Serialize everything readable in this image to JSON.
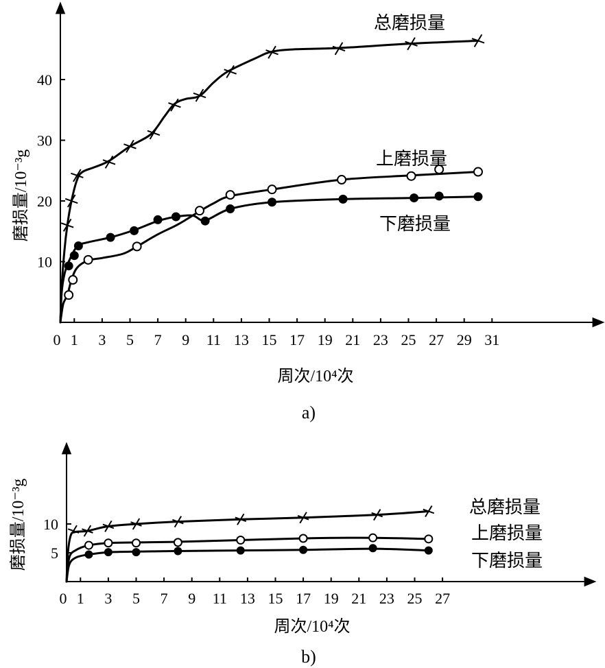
{
  "chart_data": [
    {
      "type": "line",
      "caption": "a)",
      "xlabel": "周次/10⁴次",
      "ylabel": "磨损量/10⁻³g",
      "xlim": [
        0,
        34
      ],
      "ylim": [
        0,
        50
      ],
      "x_ticks": [
        "0",
        "1",
        "3",
        "5",
        "7",
        "9",
        "11",
        "13",
        "15",
        "17",
        "19",
        "21",
        "23",
        "25",
        "27",
        "29",
        "31"
      ],
      "y_ticks": [
        "10",
        "20",
        "30",
        "40"
      ],
      "grid": false,
      "series": [
        {
          "name": "总磨损量",
          "marker": "x",
          "curve": [
            [
              0,
              0
            ],
            [
              0.1,
              6
            ],
            [
              0.3,
              12
            ],
            [
              0.5,
              16
            ],
            [
              0.8,
              20
            ],
            [
              1.2,
              23.5
            ],
            [
              1.6,
              24.8
            ],
            [
              2.5,
              25.6
            ],
            [
              3.5,
              26.6
            ],
            [
              5,
              29
            ],
            [
              6.5,
              31
            ],
            [
              7.5,
              34
            ],
            [
              8.2,
              36
            ],
            [
              9,
              36.8
            ],
            [
              10,
              37.3
            ],
            [
              11,
              39.5
            ],
            [
              12,
              41.3
            ],
            [
              14,
              43.5
            ],
            [
              15.2,
              44.6
            ],
            [
              17,
              45
            ],
            [
              20,
              45.2
            ],
            [
              25,
              45.9
            ],
            [
              30,
              46.4
            ]
          ],
          "markers": [
            [
              0.5,
              16
            ],
            [
              0.8,
              20
            ],
            [
              1.2,
              24.2
            ],
            [
              3.5,
              26.4
            ],
            [
              5,
              29
            ],
            [
              6.7,
              31.2
            ],
            [
              8.2,
              35.8
            ],
            [
              10,
              37.4
            ],
            [
              12.2,
              41.3
            ],
            [
              15.2,
              44.5
            ],
            [
              20,
              45.1
            ],
            [
              25.2,
              45.9
            ],
            [
              30,
              46.4
            ]
          ]
        },
        {
          "name": "上磨损量",
          "marker": "open-circle",
          "curve": [
            [
              0,
              0
            ],
            [
              0.2,
              3
            ],
            [
              0.5,
              4.5
            ],
            [
              0.8,
              7
            ],
            [
              1.2,
              9
            ],
            [
              2,
              10.2
            ],
            [
              3,
              10.6
            ],
            [
              4.5,
              11.3
            ],
            [
              5.5,
              12.5
            ],
            [
              7,
              14.5
            ],
            [
              8.5,
              16.2
            ],
            [
              10,
              18.3
            ],
            [
              11,
              19.6
            ],
            [
              12.2,
              20.8
            ],
            [
              15.2,
              21.9
            ],
            [
              20.2,
              23.5
            ],
            [
              25.2,
              24.2
            ],
            [
              30,
              24.8
            ]
          ],
          "markers": [
            [
              0.6,
              4.5
            ],
            [
              0.9,
              7
            ],
            [
              2,
              10.3
            ],
            [
              5.5,
              12.5
            ],
            [
              10,
              18.4
            ],
            [
              12.2,
              21
            ],
            [
              15.2,
              21.9
            ],
            [
              20.2,
              23.5
            ],
            [
              25.2,
              24.1
            ],
            [
              27.2,
              25.2
            ],
            [
              30,
              24.8
            ]
          ]
        },
        {
          "name": "下磨损量",
          "marker": "filled-circle",
          "curve": [
            [
              0,
              0
            ],
            [
              0.1,
              5
            ],
            [
              0.3,
              8
            ],
            [
              0.6,
              10
            ],
            [
              1.2,
              12.5
            ],
            [
              2,
              13.2
            ],
            [
              3.6,
              14
            ],
            [
              5.3,
              15.2
            ],
            [
              7,
              16.7
            ],
            [
              8.3,
              17.4
            ],
            [
              9.5,
              17.6
            ],
            [
              10.4,
              16.8
            ],
            [
              12.2,
              18.7
            ],
            [
              15.2,
              19.8
            ],
            [
              20.3,
              20.3
            ],
            [
              25.4,
              20.5
            ],
            [
              30,
              20.7
            ]
          ],
          "markers": [
            [
              0.6,
              9.3
            ],
            [
              1,
              11
            ],
            [
              1.3,
              12.6
            ],
            [
              3.6,
              14
            ],
            [
              5.3,
              15.1
            ],
            [
              7,
              16.9
            ],
            [
              8.3,
              17.4
            ],
            [
              10.4,
              16.7
            ],
            [
              12.2,
              18.7
            ],
            [
              15.2,
              19.8
            ],
            [
              20.3,
              20.3
            ],
            [
              25.4,
              20.5
            ],
            [
              27.2,
              20.8
            ],
            [
              30,
              20.7
            ]
          ]
        }
      ]
    },
    {
      "type": "line",
      "caption": "b)",
      "xlabel": "周次/10⁴次",
      "ylabel": "磨损量/10⁻³g",
      "xlim": [
        0,
        34
      ],
      "ylim": [
        0,
        17
      ],
      "x_ticks": [
        "0",
        "1",
        "3",
        "5",
        "7",
        "9",
        "11",
        "13",
        "15",
        "17",
        "19",
        "21",
        "23",
        "25",
        "27"
      ],
      "y_ticks": [
        "5",
        "10"
      ],
      "grid": false,
      "series": [
        {
          "name": "总磨损量",
          "marker": "x",
          "curve": [
            [
              0,
              0
            ],
            [
              0.1,
              5
            ],
            [
              0.3,
              8
            ],
            [
              0.6,
              8.6
            ],
            [
              1.5,
              8.8
            ],
            [
              3,
              9.6
            ],
            [
              5,
              10
            ],
            [
              8,
              10.4
            ],
            [
              12.5,
              10.8
            ],
            [
              17,
              11.1
            ],
            [
              22.3,
              11.6
            ],
            [
              26,
              12.2
            ]
          ],
          "markers": [
            [
              0.5,
              8.8
            ],
            [
              1.5,
              8.8
            ],
            [
              3,
              9.6
            ],
            [
              5,
              10
            ],
            [
              8,
              10.4
            ],
            [
              12.5,
              10.8
            ],
            [
              17,
              11.1
            ],
            [
              22.3,
              11.6
            ],
            [
              26,
              12.2
            ]
          ]
        },
        {
          "name": "上磨损量",
          "marker": "open-circle",
          "curve": [
            [
              0,
              0
            ],
            [
              0.2,
              4.2
            ],
            [
              0.7,
              5.5
            ],
            [
              1.6,
              6.3
            ],
            [
              3,
              6.7
            ],
            [
              5,
              6.8
            ],
            [
              8,
              6.9
            ],
            [
              12.5,
              7.2
            ],
            [
              17,
              7.5
            ],
            [
              22,
              7.6
            ],
            [
              26,
              7.4
            ]
          ],
          "markers": [
            [
              1.6,
              6.3
            ],
            [
              3,
              6.7
            ],
            [
              5,
              6.7
            ],
            [
              8,
              6.8
            ],
            [
              12.5,
              7.2
            ],
            [
              17,
              7.5
            ],
            [
              22,
              7.6
            ],
            [
              26,
              7.4
            ]
          ]
        },
        {
          "name": "下磨损量",
          "marker": "filled-circle",
          "curve": [
            [
              0,
              0
            ],
            [
              0.2,
              3
            ],
            [
              0.7,
              4.2
            ],
            [
              1.6,
              4.7
            ],
            [
              3,
              5.1
            ],
            [
              5,
              5.2
            ],
            [
              8,
              5.3
            ],
            [
              12.5,
              5.4
            ],
            [
              17,
              5.5
            ],
            [
              22,
              5.7
            ],
            [
              26,
              5.4
            ]
          ],
          "markers": [
            [
              1.6,
              4.7
            ],
            [
              3,
              5.1
            ],
            [
              5,
              5.1
            ],
            [
              8,
              5.3
            ],
            [
              12.5,
              5.4
            ],
            [
              17,
              5.5
            ],
            [
              22,
              5.8
            ],
            [
              26,
              5.4
            ]
          ]
        }
      ]
    }
  ]
}
